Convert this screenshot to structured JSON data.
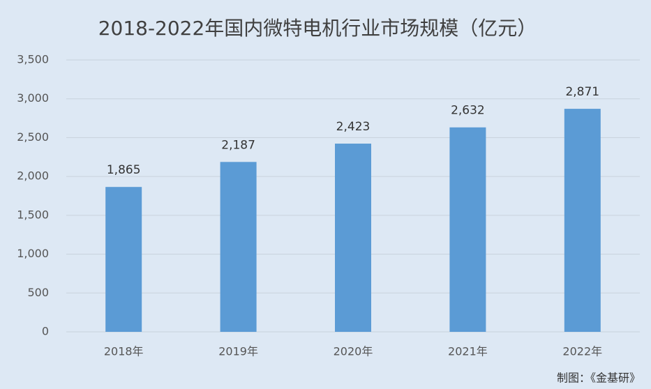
{
  "chart_data": {
    "type": "bar",
    "title": "2018-2022年国内微特电机行业市场规模（亿元）",
    "categories": [
      "2018年",
      "2019年",
      "2020年",
      "2021年",
      "2022年"
    ],
    "values": [
      1865,
      2187,
      2423,
      2632,
      2871
    ],
    "value_labels": [
      "1,865",
      "2,187",
      "2,423",
      "2,632",
      "2,871"
    ],
    "color": "#5b9bd5",
    "ylim": [
      0,
      3500
    ],
    "yticks": [
      0,
      500,
      {
        "value": 1000,
        "label": "1,000"
      },
      {
        "value": 1500,
        "label": "1,500"
      },
      {
        "value": 2000,
        "label": "2,000"
      },
      {
        "value": 2500,
        "label": "2,500"
      },
      {
        "value": 3000,
        "label": "3,000"
      },
      {
        "value": 3500,
        "label": "3,500"
      }
    ],
    "grid": true,
    "source": "制图：《金基研》"
  }
}
